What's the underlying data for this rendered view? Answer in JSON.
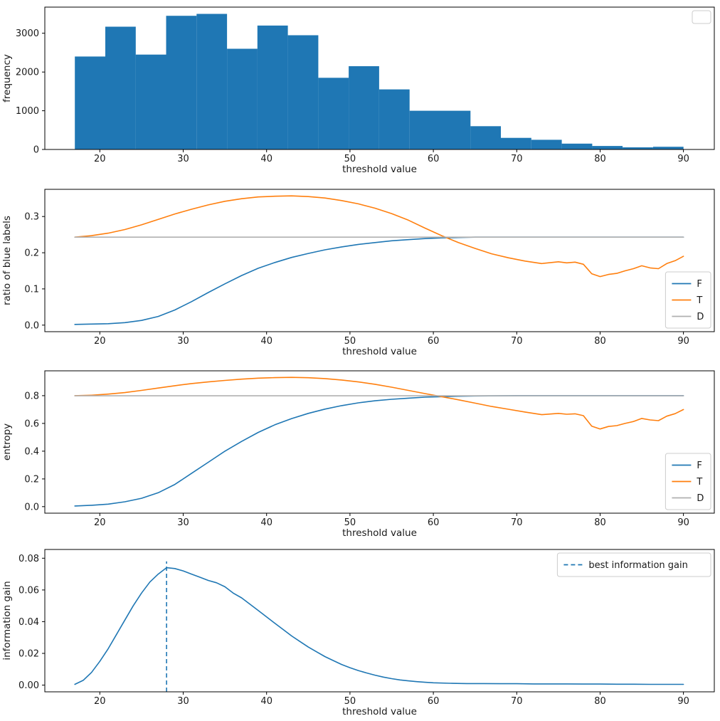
{
  "figure": {
    "background": "#ffffff"
  },
  "colors": {
    "blue": "#1f77b4",
    "orange": "#ff7f0e",
    "gray": "#b0b0b0",
    "axis": "#000000",
    "tick_text": "#1a1a1a"
  },
  "chart_data": [
    {
      "name": "frequency-histogram",
      "type": "bar",
      "title": "",
      "xlabel": "threshold value",
      "ylabel": "frequency",
      "color": "#1f77b4",
      "xlim": [
        13.4,
        93.7
      ],
      "ylim": [
        0,
        3675
      ],
      "xticks": [
        20,
        30,
        40,
        50,
        60,
        70,
        80,
        90
      ],
      "xticklabels": [
        "20",
        "30",
        "40",
        "50",
        "60",
        "70",
        "80",
        "90"
      ],
      "yticks": [
        0,
        1000,
        2000,
        3000
      ],
      "yticklabels": [
        "0",
        "1000",
        "2000",
        "3000"
      ],
      "bin_edges": [
        17,
        20.65,
        24.3,
        27.95,
        31.6,
        35.25,
        38.9,
        42.55,
        46.2,
        49.85,
        53.5,
        57.15,
        60.8,
        64.45,
        68.1,
        71.75,
        75.4,
        79.05,
        82.7,
        86.35,
        90
      ],
      "values": [
        2400,
        3170,
        2450,
        3450,
        3500,
        2600,
        3200,
        2950,
        1850,
        2150,
        1550,
        1000,
        1000,
        600,
        300,
        250,
        150,
        90,
        55,
        70
      ],
      "legend": {
        "position": "upper-right",
        "entries": []
      }
    },
    {
      "name": "ratio-of-blue-labels",
      "type": "line",
      "title": "",
      "xlabel": "threshold value",
      "ylabel": "ratio of blue labels",
      "xlim": [
        13.4,
        93.7
      ],
      "ylim": [
        -0.018,
        0.375
      ],
      "xticks": [
        20,
        30,
        40,
        50,
        60,
        70,
        80,
        90
      ],
      "xticklabels": [
        "20",
        "30",
        "40",
        "50",
        "60",
        "70",
        "80",
        "90"
      ],
      "yticks": [
        0.0,
        0.1,
        0.2,
        0.3
      ],
      "yticklabels": [
        "0.0",
        "0.1",
        "0.2",
        "0.3"
      ],
      "series": [
        {
          "name": "F",
          "color": "#1f77b4",
          "x": [
            17,
            19,
            21,
            23,
            25,
            27,
            29,
            31,
            33,
            35,
            37,
            39,
            41,
            43,
            45,
            47,
            49,
            51,
            53,
            55,
            57,
            59,
            61,
            63,
            65,
            70,
            75,
            80,
            85,
            90
          ],
          "y": [
            0.002,
            0.003,
            0.004,
            0.007,
            0.013,
            0.024,
            0.042,
            0.065,
            0.09,
            0.114,
            0.137,
            0.157,
            0.173,
            0.187,
            0.198,
            0.208,
            0.216,
            0.223,
            0.228,
            0.233,
            0.236,
            0.239,
            0.241,
            0.242,
            0.243,
            0.243,
            0.243,
            0.243,
            0.243,
            0.243
          ]
        },
        {
          "name": "T",
          "color": "#ff7f0e",
          "x": [
            17,
            19,
            21,
            23,
            25,
            27,
            29,
            31,
            33,
            35,
            37,
            39,
            41,
            43,
            45,
            47,
            49,
            51,
            53,
            55,
            57,
            59,
            61,
            63,
            65,
            67,
            69,
            71,
            73,
            75,
            76,
            77,
            78,
            79,
            80,
            81,
            82,
            83,
            84,
            85,
            86,
            87,
            88,
            89,
            90
          ],
          "y": [
            0.243,
            0.247,
            0.254,
            0.264,
            0.277,
            0.292,
            0.307,
            0.32,
            0.332,
            0.342,
            0.349,
            0.354,
            0.356,
            0.357,
            0.355,
            0.351,
            0.344,
            0.335,
            0.323,
            0.308,
            0.29,
            0.268,
            0.247,
            0.228,
            0.212,
            0.197,
            0.186,
            0.177,
            0.17,
            0.175,
            0.172,
            0.174,
            0.168,
            0.142,
            0.134,
            0.14,
            0.143,
            0.15,
            0.156,
            0.164,
            0.158,
            0.156,
            0.17,
            0.178,
            0.19
          ]
        },
        {
          "name": "D",
          "color": "#b0b0b0",
          "x": [
            17,
            90
          ],
          "y": [
            0.243,
            0.243
          ]
        }
      ],
      "legend": {
        "position": "lower-right",
        "entries": [
          {
            "label": "F",
            "color": "#1f77b4",
            "dashed": false
          },
          {
            "label": "T",
            "color": "#ff7f0e",
            "dashed": false
          },
          {
            "label": "D",
            "color": "#b0b0b0",
            "dashed": false
          }
        ]
      }
    },
    {
      "name": "entropy",
      "type": "line",
      "title": "",
      "xlabel": "threshold value",
      "ylabel": "entropy",
      "xlim": [
        13.4,
        93.7
      ],
      "ylim": [
        -0.047,
        0.979
      ],
      "xticks": [
        20,
        30,
        40,
        50,
        60,
        70,
        80,
        90
      ],
      "xticklabels": [
        "20",
        "30",
        "40",
        "50",
        "60",
        "70",
        "80",
        "90"
      ],
      "yticks": [
        0.0,
        0.2,
        0.4,
        0.6,
        0.8
      ],
      "yticklabels": [
        "0.0",
        "0.2",
        "0.4",
        "0.6",
        "0.8"
      ],
      "series": [
        {
          "name": "F",
          "color": "#1f77b4",
          "x": [
            17,
            19,
            21,
            23,
            25,
            27,
            29,
            31,
            33,
            35,
            37,
            39,
            41,
            43,
            45,
            47,
            49,
            51,
            53,
            55,
            57,
            59,
            61,
            63,
            65,
            70,
            75,
            80,
            85,
            90
          ],
          "y": [
            0.005,
            0.01,
            0.018,
            0.035,
            0.06,
            0.1,
            0.16,
            0.24,
            0.32,
            0.4,
            0.47,
            0.535,
            0.59,
            0.635,
            0.672,
            0.703,
            0.728,
            0.748,
            0.763,
            0.774,
            0.782,
            0.789,
            0.793,
            0.796,
            0.798,
            0.8,
            0.8,
            0.8,
            0.8,
            0.8
          ]
        },
        {
          "name": "T",
          "color": "#ff7f0e",
          "x": [
            17,
            19,
            21,
            23,
            25,
            27,
            29,
            31,
            33,
            35,
            37,
            39,
            41,
            43,
            45,
            47,
            49,
            51,
            53,
            55,
            57,
            59,
            61,
            63,
            65,
            67,
            69,
            71,
            73,
            75,
            76,
            77,
            78,
            79,
            80,
            81,
            82,
            83,
            84,
            85,
            86,
            87,
            88,
            89,
            90
          ],
          "y": [
            0.8,
            0.803,
            0.811,
            0.822,
            0.838,
            0.855,
            0.872,
            0.887,
            0.899,
            0.91,
            0.919,
            0.926,
            0.93,
            0.932,
            0.929,
            0.923,
            0.913,
            0.899,
            0.882,
            0.861,
            0.838,
            0.815,
            0.793,
            0.77,
            0.746,
            0.722,
            0.702,
            0.682,
            0.663,
            0.672,
            0.666,
            0.669,
            0.656,
            0.58,
            0.56,
            0.578,
            0.584,
            0.6,
            0.614,
            0.636,
            0.625,
            0.62,
            0.652,
            0.67,
            0.7
          ]
        },
        {
          "name": "D",
          "color": "#b0b0b0",
          "x": [
            17,
            90
          ],
          "y": [
            0.799,
            0.799
          ]
        }
      ],
      "legend": {
        "position": "lower-right",
        "entries": [
          {
            "label": "F",
            "color": "#1f77b4",
            "dashed": false
          },
          {
            "label": "T",
            "color": "#ff7f0e",
            "dashed": false
          },
          {
            "label": "D",
            "color": "#b0b0b0",
            "dashed": false
          }
        ]
      }
    },
    {
      "name": "information-gain",
      "type": "line",
      "title": "",
      "xlabel": "threshold value",
      "ylabel": "information gain",
      "xlim": [
        13.4,
        93.7
      ],
      "ylim": [
        -0.0042,
        0.0855
      ],
      "xticks": [
        20,
        30,
        40,
        50,
        60,
        70,
        80,
        90
      ],
      "xticklabels": [
        "20",
        "30",
        "40",
        "50",
        "60",
        "70",
        "80",
        "90"
      ],
      "yticks": [
        0.0,
        0.02,
        0.04,
        0.06,
        0.08
      ],
      "yticklabels": [
        "0.00",
        "0.02",
        "0.04",
        "0.06",
        "0.08"
      ],
      "series": [
        {
          "name": "gain",
          "color": "#1f77b4",
          "x": [
            17,
            18,
            19,
            20,
            21,
            22,
            23,
            24,
            25,
            26,
            27,
            28,
            29,
            30,
            31,
            32,
            33,
            34,
            35,
            36,
            37,
            38,
            39,
            40,
            41,
            42,
            43,
            44,
            45,
            46,
            47,
            48,
            49,
            50,
            51,
            52,
            53,
            54,
            55,
            56,
            57,
            58,
            59,
            60,
            62,
            64,
            66,
            68,
            70,
            72,
            74,
            76,
            78,
            80,
            82,
            84,
            86,
            88,
            90
          ],
          "y": [
            0.0005,
            0.003,
            0.008,
            0.015,
            0.023,
            0.032,
            0.041,
            0.05,
            0.058,
            0.065,
            0.07,
            0.074,
            0.0735,
            0.072,
            0.07,
            0.068,
            0.066,
            0.0645,
            0.062,
            0.058,
            0.055,
            0.051,
            0.047,
            0.043,
            0.039,
            0.035,
            0.031,
            0.0275,
            0.024,
            0.021,
            0.018,
            0.0155,
            0.013,
            0.011,
            0.0092,
            0.0077,
            0.0063,
            0.0051,
            0.0041,
            0.0033,
            0.0027,
            0.0022,
            0.0018,
            0.0015,
            0.0012,
            0.001,
            0.001,
            0.0009,
            0.0009,
            0.0008,
            0.0008,
            0.0008,
            0.0007,
            0.0007,
            0.0006,
            0.0006,
            0.0005,
            0.0005,
            0.0005
          ]
        }
      ],
      "vline": {
        "x": 28,
        "y0": -0.0042,
        "y1": 0.078,
        "color": "#1f77b4",
        "label": "best information gain"
      },
      "legend": {
        "position": "upper-right",
        "entries": [
          {
            "label": "best information gain",
            "color": "#1f77b4",
            "dashed": true
          }
        ]
      }
    }
  ]
}
